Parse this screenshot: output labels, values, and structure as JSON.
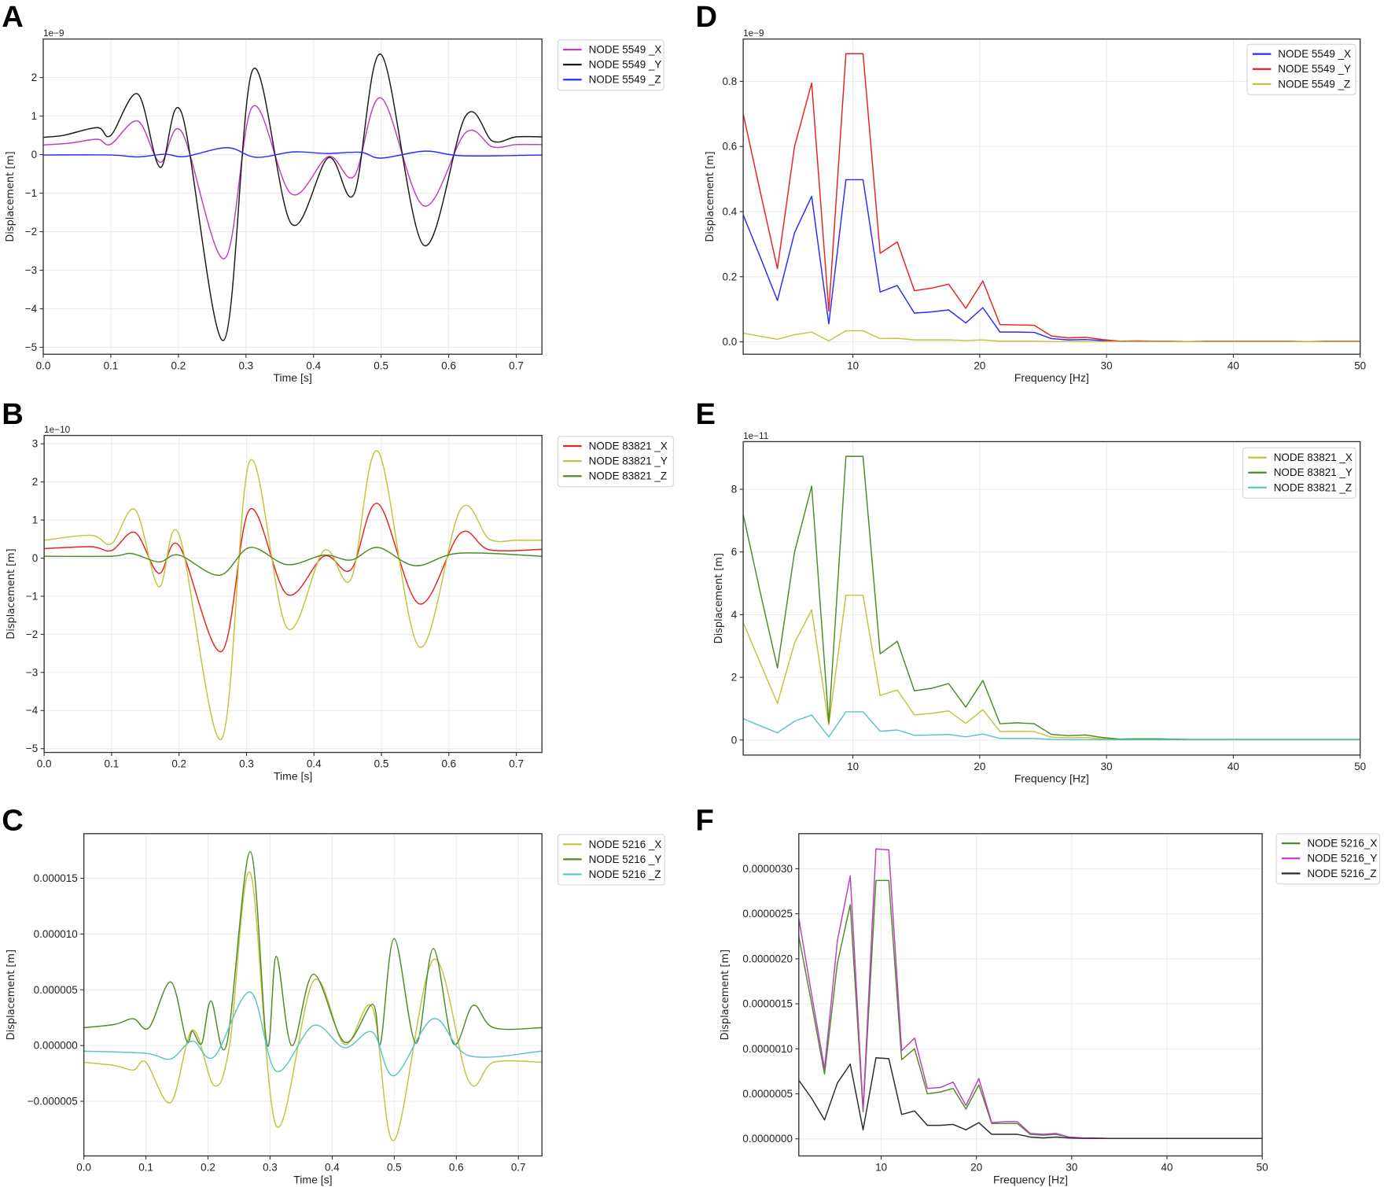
{
  "chart_data": [
    {
      "panel": "A",
      "type": "line",
      "smooth": true,
      "xlabel": "Time [s]",
      "ylabel": "Displacement [m]",
      "offset_text": "1e−9",
      "y_scale": 1e-09,
      "xlim": [
        0,
        0.738
      ],
      "ylim": [
        -5.18,
        3.0
      ],
      "grid": true,
      "legend": "outside-top-right",
      "xticks": [
        0,
        0.1,
        0.2,
        0.3,
        0.4,
        0.5,
        0.6,
        0.7
      ],
      "xtick_labels": [
        "0.0",
        "0.1",
        "0.2",
        "0.3",
        "0.4",
        "0.5",
        "0.6",
        "0.7"
      ],
      "yticks": [
        -5,
        -4,
        -3,
        -2,
        -1,
        0,
        1,
        2
      ],
      "ytick_labels": [
        "−5",
        "−4",
        "−3",
        "−2",
        "−1",
        "0",
        "1",
        "2"
      ],
      "series": [
        {
          "name": "NODE 5549 _X",
          "color": "#bf3fbf",
          "x": [
            0,
            0.04,
            0.08,
            0.1,
            0.14,
            0.173,
            0.205,
            0.268,
            0.31,
            0.367,
            0.422,
            0.46,
            0.5,
            0.563,
            0.625,
            0.665,
            0.7,
            0.738
          ],
          "y": [
            0.25,
            0.3,
            0.4,
            0.27,
            0.87,
            -0.2,
            0.59,
            -2.7,
            1.25,
            -1.02,
            -0.05,
            -0.56,
            1.47,
            -1.33,
            0.57,
            0.2,
            0.26,
            0.26
          ]
        },
        {
          "name": "NODE 5549 _Y",
          "color": "#1a1a1a",
          "x": [
            0,
            0.03,
            0.08,
            0.1,
            0.14,
            0.173,
            0.205,
            0.267,
            0.31,
            0.367,
            0.422,
            0.46,
            0.5,
            0.563,
            0.625,
            0.665,
            0.7,
            0.738
          ],
          "y": [
            0.45,
            0.5,
            0.7,
            0.5,
            1.57,
            -0.33,
            1.07,
            -4.82,
            2.2,
            -1.79,
            -0.08,
            -1.02,
            2.6,
            -2.35,
            1.0,
            0.35,
            0.46,
            0.46
          ]
        },
        {
          "name": "NODE 5549 _Z",
          "color": "#2a2aff",
          "x": [
            0,
            0.1,
            0.14,
            0.18,
            0.21,
            0.272,
            0.315,
            0.37,
            0.42,
            0.47,
            0.5,
            0.565,
            0.62,
            0.738
          ],
          "y": [
            -0.01,
            -0.01,
            -0.06,
            0.01,
            -0.05,
            0.18,
            -0.07,
            0.07,
            0.03,
            0.06,
            -0.09,
            0.09,
            -0.03,
            -0.01
          ]
        }
      ]
    },
    {
      "panel": "B",
      "type": "line",
      "smooth": true,
      "xlabel": "Time [s]",
      "ylabel": "Displacement [m]",
      "offset_text": "1e−10",
      "y_scale": 1e-10,
      "xlim": [
        0,
        0.738
      ],
      "ylim": [
        -5.1,
        3.22
      ],
      "grid": true,
      "legend": "outside-top-right",
      "xticks": [
        0,
        0.1,
        0.2,
        0.3,
        0.4,
        0.5,
        0.6,
        0.7
      ],
      "xtick_labels": [
        "0.0",
        "0.1",
        "0.2",
        "0.3",
        "0.4",
        "0.5",
        "0.6",
        "0.7"
      ],
      "yticks": [
        -5,
        -4,
        -3,
        -2,
        -1,
        0,
        1,
        2,
        3
      ],
      "ytick_labels": [
        "−5",
        "−4",
        "−3",
        "−2",
        "−1",
        "0",
        "1",
        "2",
        "3"
      ],
      "series": [
        {
          "name": "NODE 83821 _X",
          "color": "#e62222",
          "x": [
            0,
            0.07,
            0.1,
            0.135,
            0.17,
            0.2,
            0.263,
            0.305,
            0.36,
            0.415,
            0.455,
            0.495,
            0.556,
            0.617,
            0.66,
            0.738
          ],
          "y": [
            0.25,
            0.3,
            0.2,
            0.67,
            -0.4,
            0.33,
            -2.45,
            1.28,
            -0.95,
            0.05,
            -0.3,
            1.43,
            -1.2,
            0.65,
            0.22,
            0.23
          ]
        },
        {
          "name": "NODE 83821 _Y",
          "color": "#c4c43a",
          "x": [
            0,
            0.07,
            0.1,
            0.135,
            0.17,
            0.2,
            0.263,
            0.305,
            0.36,
            0.415,
            0.455,
            0.495,
            0.556,
            0.617,
            0.66,
            0.7,
            0.738
          ],
          "y": [
            0.47,
            0.6,
            0.38,
            1.27,
            -0.75,
            0.62,
            -4.75,
            2.55,
            -1.83,
            0.2,
            -0.55,
            2.8,
            -2.33,
            1.27,
            0.5,
            0.47,
            0.47
          ]
        },
        {
          "name": "NODE 83821 _Z",
          "color": "#4f8a2a",
          "x": [
            0,
            0.1,
            0.13,
            0.17,
            0.2,
            0.26,
            0.305,
            0.36,
            0.415,
            0.455,
            0.495,
            0.55,
            0.615,
            0.738
          ],
          "y": [
            0.05,
            0.05,
            0.12,
            -0.1,
            0.08,
            -0.45,
            0.28,
            -0.17,
            0.08,
            -0.05,
            0.28,
            -0.2,
            0.13,
            0.05
          ]
        }
      ]
    },
    {
      "panel": "C",
      "type": "line",
      "smooth": true,
      "xlabel": "Time [s]",
      "ylabel": "Displacement [m]",
      "offset_text": "",
      "y_scale": 1e-06,
      "xlim": [
        0,
        0.738
      ],
      "ylim": [
        -9.9,
        19.0
      ],
      "grid": true,
      "legend": "outside-top-right",
      "xticks": [
        0,
        0.1,
        0.2,
        0.3,
        0.4,
        0.5,
        0.6,
        0.7
      ],
      "xtick_labels": [
        "0.0",
        "0.1",
        "0.2",
        "0.3",
        "0.4",
        "0.5",
        "0.6",
        "0.7"
      ],
      "yticks": [
        -5,
        0,
        5,
        10,
        15
      ],
      "ytick_labels": [
        "−0.000005",
        "0.000000",
        "0.000005",
        "0.000010",
        "0.000015"
      ],
      "series": [
        {
          "name": "NODE 5216 _X",
          "color": "#c4c43a",
          "x": [
            0,
            0.05,
            0.08,
            0.1,
            0.14,
            0.175,
            0.21,
            0.235,
            0.268,
            0.31,
            0.37,
            0.42,
            0.465,
            0.5,
            0.563,
            0.62,
            0.66,
            0.738
          ],
          "y": [
            -1.5,
            -1.8,
            -2.2,
            -1.5,
            -5.1,
            1.4,
            -3.6,
            0.1,
            15.5,
            -7.2,
            5.8,
            0.1,
            3.4,
            -8.5,
            7.7,
            -3.2,
            -1.5,
            -1.5
          ]
        },
        {
          "name": "NODE 5216 _Y",
          "color": "#4f8a2a",
          "x": [
            0,
            0.05,
            0.08,
            0.105,
            0.14,
            0.165,
            0.175,
            0.19,
            0.205,
            0.23,
            0.268,
            0.295,
            0.31,
            0.335,
            0.37,
            0.42,
            0.465,
            0.478,
            0.5,
            0.535,
            0.563,
            0.595,
            0.627,
            0.66,
            0.738
          ],
          "y": [
            1.6,
            1.9,
            2.4,
            1.6,
            5.7,
            0.5,
            1.3,
            0.2,
            4.0,
            0.1,
            17.4,
            0.1,
            8.0,
            0.0,
            6.4,
            0.3,
            3.7,
            0.2,
            9.6,
            0.2,
            8.7,
            0.2,
            3.6,
            1.6,
            1.6
          ]
        },
        {
          "name": "NODE 5216 _Z",
          "color": "#5cc4c4",
          "x": [
            0,
            0.1,
            0.14,
            0.175,
            0.21,
            0.268,
            0.31,
            0.37,
            0.42,
            0.465,
            0.5,
            0.563,
            0.62,
            0.738
          ],
          "y": [
            -0.5,
            -0.7,
            -1.2,
            0.4,
            -1.0,
            4.8,
            -2.3,
            1.8,
            -0.2,
            1.2,
            -2.7,
            2.4,
            -0.9,
            -0.5
          ]
        }
      ]
    },
    {
      "panel": "D",
      "type": "line",
      "smooth": false,
      "xlabel": "Frequency [Hz]",
      "ylabel": "Displacement [m]",
      "offset_text": "1e−9",
      "y_scale": 1e-09,
      "xlim": [
        1.35,
        50
      ],
      "ylim": [
        -0.038,
        0.93
      ],
      "grid": true,
      "legend": "top-right",
      "xticks": [
        10,
        20,
        30,
        40,
        50
      ],
      "xtick_labels": [
        "10",
        "20",
        "30",
        "40",
        "50"
      ],
      "yticks": [
        0,
        0.2,
        0.4,
        0.6,
        0.8
      ],
      "ytick_labels": [
        "0.0",
        "0.2",
        "0.4",
        "0.6",
        "0.8"
      ],
      "freq_step": 1.35,
      "series": [
        {
          "name": "NODE 5549 _X",
          "color": "#2a2aff",
          "y": [
            0.39,
            0.26,
            0.127,
            0.335,
            0.447,
            0.055,
            0.498,
            0.498,
            0.153,
            0.173,
            0.088,
            0.092,
            0.098,
            0.058,
            0.105,
            0.03,
            0.03,
            0.029,
            0.01,
            0.006,
            0.007,
            0.004,
            0.001,
            0.001,
            0.001,
            0.001,
            0.001,
            0.001,
            0.001,
            0.001,
            0.001,
            0.001,
            0.001,
            0.001,
            0.001,
            0.001,
            0.001
          ]
        },
        {
          "name": "NODE 5549 _Y",
          "color": "#e62222",
          "y": [
            0.7,
            0.46,
            0.225,
            0.6,
            0.795,
            0.095,
            0.885,
            0.885,
            0.272,
            0.307,
            0.157,
            0.165,
            0.177,
            0.103,
            0.187,
            0.053,
            0.052,
            0.051,
            0.018,
            0.012,
            0.014,
            0.007,
            0.002,
            0.003,
            0.002,
            0.002,
            0.001,
            0.002,
            0.002,
            0.002,
            0.002,
            0.002,
            0.002,
            0.001,
            0.002,
            0.002,
            0.002
          ]
        },
        {
          "name": "NODE 5549 _Z",
          "color": "#c4c43a",
          "y": [
            0.027,
            0.017,
            0.008,
            0.022,
            0.03,
            0.003,
            0.034,
            0.034,
            0.01,
            0.011,
            0.006,
            0.006,
            0.006,
            0.004,
            0.006,
            0.002,
            0.002,
            0.002,
            0.001,
            0.001,
            0.001,
            0.001,
            0.001,
            0.001,
            0.001,
            0.001,
            0.001,
            0.001,
            0.001,
            0.001,
            0.001,
            0.001,
            0.001,
            0.001,
            0.001,
            0.001,
            0.001
          ]
        }
      ]
    },
    {
      "panel": "E",
      "type": "line",
      "smooth": false,
      "xlabel": "Frequency [Hz]",
      "ylabel": "Displacement [m]",
      "offset_text": "1e−11",
      "y_scale": 1e-11,
      "xlim": [
        1.35,
        50
      ],
      "ylim": [
        -0.48,
        9.52
      ],
      "grid": true,
      "legend": "top-right",
      "xticks": [
        10,
        20,
        30,
        40,
        50
      ],
      "xtick_labels": [
        "10",
        "20",
        "30",
        "40",
        "50"
      ],
      "yticks": [
        0,
        2,
        4,
        6,
        8
      ],
      "ytick_labels": [
        "0",
        "2",
        "4",
        "6",
        "8"
      ],
      "freq_step": 1.35,
      "series": [
        {
          "name": "NODE 83821 _X",
          "color": "#c4c43a",
          "y": [
            3.75,
            2.45,
            1.17,
            3.1,
            4.15,
            0.48,
            4.62,
            4.62,
            1.42,
            1.6,
            0.8,
            0.85,
            0.93,
            0.53,
            0.97,
            0.27,
            0.28,
            0.27,
            0.09,
            0.07,
            0.08,
            0.04,
            0.01,
            0.01,
            0.01,
            0.01,
            0.01,
            0.01,
            0.01,
            0.01,
            0.01,
            0.01,
            0.01,
            0.01,
            0.01,
            0.01,
            0.01
          ]
        },
        {
          "name": "NODE 83821 _Y",
          "color": "#4f8a2a",
          "y": [
            7.2,
            4.7,
            2.3,
            6.0,
            8.1,
            0.55,
            9.05,
            9.05,
            2.75,
            3.15,
            1.57,
            1.65,
            1.8,
            1.05,
            1.9,
            0.52,
            0.55,
            0.52,
            0.18,
            0.14,
            0.16,
            0.08,
            0.03,
            0.04,
            0.04,
            0.03,
            0.02,
            0.02,
            0.02,
            0.02,
            0.02,
            0.02,
            0.02,
            0.02,
            0.02,
            0.02,
            0.02
          ]
        },
        {
          "name": "NODE 83821 _Z",
          "color": "#5cc4c4",
          "y": [
            0.68,
            0.45,
            0.23,
            0.6,
            0.8,
            0.1,
            0.9,
            0.9,
            0.28,
            0.32,
            0.15,
            0.16,
            0.18,
            0.1,
            0.19,
            0.05,
            0.05,
            0.05,
            0.02,
            0.01,
            0.01,
            0.01,
            0.01,
            0.01,
            0.01,
            0.01,
            0.01,
            0.01,
            0.01,
            0.01,
            0.01,
            0.01,
            0.01,
            0.01,
            0.01,
            0.01,
            0.01
          ]
        }
      ]
    },
    {
      "panel": "F",
      "type": "line",
      "smooth": false,
      "xlabel": "Frequency [Hz]",
      "ylabel": "Displacement [m]",
      "offset_text": "",
      "y_scale": 1e-06,
      "xlim": [
        1.35,
        50
      ],
      "ylim": [
        -0.19,
        3.39
      ],
      "grid": true,
      "legend": "outside-top-right",
      "xticks": [
        10,
        20,
        30,
        40,
        50
      ],
      "xtick_labels": [
        "10",
        "20",
        "30",
        "40",
        "50"
      ],
      "yticks": [
        0,
        0.5,
        1.0,
        1.5,
        2.0,
        2.5,
        3.0
      ],
      "ytick_labels": [
        "0.0000000",
        "0.0000005",
        "0.0000010",
        "0.0000015",
        "0.0000020",
        "0.0000025",
        "0.0000030"
      ],
      "freq_step": 1.35,
      "series": [
        {
          "name": "NODE 5216_X",
          "color": "#4f8a2a",
          "y": [
            2.25,
            1.5,
            0.72,
            1.95,
            2.6,
            0.3,
            2.87,
            2.87,
            0.88,
            1.0,
            0.5,
            0.52,
            0.56,
            0.33,
            0.6,
            0.17,
            0.17,
            0.17,
            0.05,
            0.04,
            0.05,
            0.02,
            0.01,
            0.005,
            0.005,
            0.005,
            0.005,
            0.005,
            0.005,
            0.005,
            0.005,
            0.005,
            0.005,
            0.005,
            0.005,
            0.005,
            0.005
          ]
        },
        {
          "name": "NODE 5216_Y",
          "color": "#bf3fbf",
          "y": [
            2.45,
            1.6,
            0.78,
            2.2,
            2.92,
            0.32,
            3.22,
            3.21,
            0.98,
            1.12,
            0.56,
            0.57,
            0.63,
            0.37,
            0.67,
            0.18,
            0.19,
            0.19,
            0.06,
            0.05,
            0.06,
            0.02,
            0.01,
            0.01,
            0.005,
            0.005,
            0.005,
            0.005,
            0.005,
            0.005,
            0.005,
            0.005,
            0.005,
            0.005,
            0.005,
            0.005,
            0.005
          ]
        },
        {
          "name": "NODE 5216_Z",
          "color": "#2a2a2a",
          "y": [
            0.65,
            0.45,
            0.21,
            0.62,
            0.83,
            0.1,
            0.9,
            0.89,
            0.27,
            0.31,
            0.15,
            0.15,
            0.16,
            0.1,
            0.18,
            0.05,
            0.05,
            0.05,
            0.02,
            0.01,
            0.02,
            0.01,
            0.005,
            0.005,
            0.005,
            0.005,
            0.005,
            0.005,
            0.005,
            0.005,
            0.005,
            0.005,
            0.005,
            0.005,
            0.005,
            0.005,
            0.005
          ]
        }
      ]
    }
  ]
}
